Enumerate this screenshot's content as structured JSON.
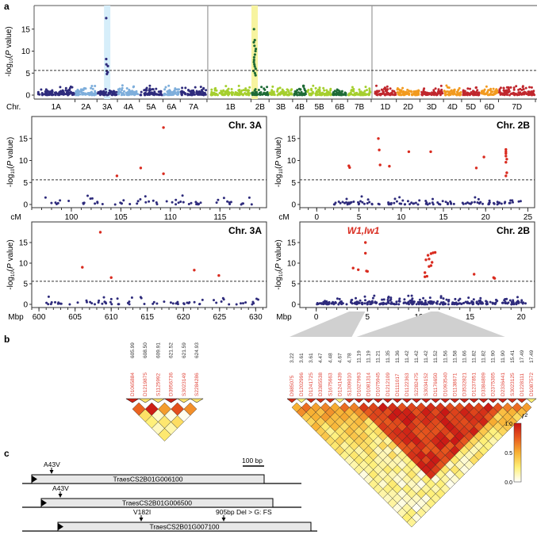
{
  "panel_labels": {
    "a": "a",
    "b": "b",
    "c": "c"
  },
  "colors": {
    "A_dark": "#2e2b7c",
    "A_light": "#7eaedb",
    "B_light": "#a5cf2e",
    "B_dark": "#1e6b36",
    "D_red": "#c0272d",
    "D_orange": "#f29a1f",
    "sig": "#d92b1f",
    "nonsig": "#2e2b7c",
    "highlight_3A": "#d6eefa",
    "highlight_2B": "#f7f4a0",
    "connector": "#d0d0d0"
  },
  "chart_data": [
    {
      "id": "genome_manhattan",
      "type": "scatter",
      "ylabel": "-log10(P value)",
      "xlabel": "Chr.",
      "ylim": [
        0,
        20
      ],
      "yticks": [
        0,
        5,
        10,
        15
      ],
      "threshold": 5.6,
      "chromosomes": [
        {
          "name": "1A",
          "genome": "A",
          "size": 48,
          "color": "A_dark"
        },
        {
          "name": "2A",
          "genome": "A",
          "size": 28,
          "color": "A_light"
        },
        {
          "name": "3A",
          "genome": "A",
          "size": 26,
          "color": "A_dark",
          "highlight": "highlight_3A",
          "peak": [
            17.5,
            8.2,
            7.0,
            6.6,
            5.5,
            5.2,
            4.8
          ],
          "peak_pos": 0.5
        },
        {
          "name": "4A",
          "genome": "A",
          "size": 28,
          "color": "A_light"
        },
        {
          "name": "5A",
          "genome": "A",
          "size": 30,
          "color": "A_dark"
        },
        {
          "name": "6A",
          "genome": "A",
          "size": 22,
          "color": "A_light"
        },
        {
          "name": "7A",
          "genome": "A",
          "size": 34,
          "color": "A_dark"
        },
        {
          "name": "1B",
          "genome": "B",
          "size": 52,
          "color": "B_light"
        },
        {
          "name": "2B",
          "genome": "B",
          "size": 23,
          "color": "B_dark",
          "highlight": "highlight_2B",
          "peak": [
            15.0,
            12.5,
            12.0,
            11.2,
            10.5,
            10.0,
            9.2,
            8.6,
            8.0,
            7.5,
            7.0,
            6.5,
            6.0,
            5.5,
            5.0,
            4.5
          ],
          "peak_pos": 0.2
        },
        {
          "name": "3B",
          "genome": "B",
          "size": 30,
          "color": "B_light"
        },
        {
          "name": "4B",
          "genome": "B",
          "size": 18,
          "color": "B_dark"
        },
        {
          "name": "5B",
          "genome": "B",
          "size": 32,
          "color": "B_light"
        },
        {
          "name": "6B",
          "genome": "B",
          "size": 20,
          "color": "B_dark"
        },
        {
          "name": "7B",
          "genome": "B",
          "size": 30,
          "color": "B_light"
        },
        {
          "name": "1D",
          "genome": "D",
          "size": 28,
          "color": "D_red"
        },
        {
          "name": "2D",
          "genome": "D",
          "size": 30,
          "color": "D_orange"
        },
        {
          "name": "3D",
          "genome": "D",
          "size": 30,
          "color": "D_red"
        },
        {
          "name": "4D",
          "genome": "D",
          "size": 23,
          "color": "D_orange"
        },
        {
          "name": "5D",
          "genome": "D",
          "size": 24,
          "color": "D_red"
        },
        {
          "name": "6D",
          "genome": "D",
          "size": 23,
          "color": "D_orange"
        },
        {
          "name": "7D",
          "genome": "D",
          "size": 47,
          "color": "D_red"
        }
      ]
    },
    {
      "id": "chr3A_cM",
      "type": "scatter",
      "title": "Chr. 3A",
      "xlabel": "cM",
      "ylabel": "-log10(P value)",
      "xlim": [
        96,
        119.7
      ],
      "ylim": [
        0,
        20
      ],
      "xticks": [
        100,
        105,
        110,
        115
      ],
      "yticks": [
        0,
        5,
        10,
        15
      ],
      "threshold": 5.6,
      "significant": [
        [
          109.3,
          17.5
        ],
        [
          107.0,
          8.3
        ],
        [
          104.6,
          6.5
        ],
        [
          109.3,
          7.0
        ]
      ],
      "background_range": [
        97,
        118.5
      ],
      "background_n": 60
    },
    {
      "id": "chr2B_cM",
      "type": "scatter",
      "title": "Chr. 2B",
      "xlabel": "cM",
      "ylabel": "-log10(P value)",
      "xlim": [
        -2,
        25.8
      ],
      "ylim": [
        0,
        20
      ],
      "xticks": [
        0,
        5,
        10,
        15,
        20,
        25
      ],
      "yticks": [
        0,
        5,
        10,
        15
      ],
      "threshold": 5.6,
      "significant": [
        [
          3.8,
          8.8
        ],
        [
          3.9,
          8.4
        ],
        [
          7.3,
          15.0
        ],
        [
          7.4,
          12.4
        ],
        [
          7.5,
          9.0
        ],
        [
          8.6,
          8.7
        ],
        [
          10.9,
          12.0
        ],
        [
          13.5,
          12.0
        ],
        [
          18.9,
          8.3
        ],
        [
          19.8,
          10.8
        ],
        [
          22.4,
          12.5
        ],
        [
          22.4,
          12.0
        ],
        [
          22.4,
          11.6
        ],
        [
          22.4,
          11.0
        ],
        [
          22.5,
          10.3
        ],
        [
          22.4,
          9.6
        ],
        [
          22.5,
          7.2
        ],
        [
          22.4,
          6.5
        ]
      ],
      "background_range": [
        2,
        24.5
      ],
      "background_n": 110
    },
    {
      "id": "chr3A_Mbp",
      "type": "scatter",
      "title": "Chr. 3A",
      "xlabel": "Mbp",
      "ylabel": "-log10(P value)",
      "xlim": [
        599,
        631.5
      ],
      "ylim": [
        0,
        20
      ],
      "xticks": [
        600,
        605,
        610,
        615,
        620,
        625,
        630
      ],
      "yticks": [
        0,
        5,
        10,
        15
      ],
      "threshold": 5.6,
      "significant": [
        [
          608.5,
          17.5
        ],
        [
          606.0,
          9.0
        ],
        [
          610.0,
          6.5
        ],
        [
          621.5,
          8.3
        ],
        [
          624.9,
          7.0
        ]
      ],
      "background_range": [
        600,
        631
      ],
      "background_n": 70
    },
    {
      "id": "chr2B_Mbp",
      "type": "scatter",
      "title": "Chr. 2B",
      "xlabel": "Mbp",
      "ylabel": "-log10(P value)",
      "annotation": "W1,Iw1",
      "xlim": [
        -1.6,
        21.3
      ],
      "ylim": [
        0,
        20
      ],
      "xticks": [
        0,
        5,
        10,
        15,
        20
      ],
      "yticks": [
        0,
        5,
        10,
        15
      ],
      "threshold": 5.6,
      "significant": [
        [
          3.6,
          8.8
        ],
        [
          4.1,
          8.4
        ],
        [
          4.8,
          15.0
        ],
        [
          4.8,
          12.4
        ],
        [
          5.0,
          8.0
        ],
        [
          4.9,
          8.1
        ],
        [
          10.6,
          7.7
        ],
        [
          10.6,
          6.7
        ],
        [
          10.8,
          6.8
        ],
        [
          10.7,
          10.8
        ],
        [
          10.9,
          11.9
        ],
        [
          11.0,
          11.0
        ],
        [
          11.2,
          12.3
        ],
        [
          11.4,
          12.5
        ],
        [
          11.6,
          12.6
        ],
        [
          11.3,
          10.2
        ],
        [
          11.0,
          9.2
        ],
        [
          11.2,
          9.4
        ],
        [
          15.4,
          7.3
        ],
        [
          17.3,
          6.5
        ],
        [
          17.4,
          6.3
        ]
      ],
      "background_range": [
        0,
        20.5
      ],
      "background_n": 300
    }
  ],
  "ld": {
    "legend_title": "r²",
    "legend_ticks": [
      "1.0",
      "0.5",
      "0.0"
    ],
    "left": {
      "markers": [
        "D1065884",
        "D1219875",
        "S1125992",
        "D3956736",
        "S3023149",
        "S2284286"
      ],
      "positions": [
        "605.99",
        "608.50",
        "609.91",
        "621.52",
        "621.59",
        "624.93"
      ]
    },
    "right": {
      "markers": [
        "D985075",
        "D1202996",
        "D1241725",
        "D3385538",
        "S1675663",
        "D1241439",
        "S1309010",
        "D1027993",
        "D1081314",
        "D1075945",
        "D1212109",
        "D1111017",
        "D1122363",
        "S2282475",
        "S3034152",
        "D1176650",
        "D1093540",
        "D1138671",
        "D3532821",
        "D1237851",
        "D3384809",
        "D2375305",
        "D2336441",
        "S3023125",
        "D1228111",
        "D1087572"
      ],
      "positions": [
        "3.22",
        "3.61",
        "3.61",
        "4.47",
        "4.48",
        "4.67",
        "4.78",
        "11.19",
        "11.19",
        "11.21",
        "11.35",
        "11.36",
        "11.42",
        "11.42",
        "11.42",
        "11.52",
        "11.56",
        "11.58",
        "11.66",
        "11.82",
        "11.82",
        "11.90",
        "11.90",
        "15.41",
        "17.49",
        "17.49"
      ],
      "block": [
        7,
        22
      ]
    }
  },
  "genes": {
    "scale_label": "100 bp",
    "items": [
      {
        "name": "TraesCS2B01G006100",
        "variants": [
          "A43V"
        ]
      },
      {
        "name": "TraesCS2B01G006500",
        "variants": [
          "A43V"
        ]
      },
      {
        "name": "TraesCS2B01G007100",
        "variants": [
          "V182I",
          "905bp Del > G: FS"
        ]
      }
    ]
  }
}
